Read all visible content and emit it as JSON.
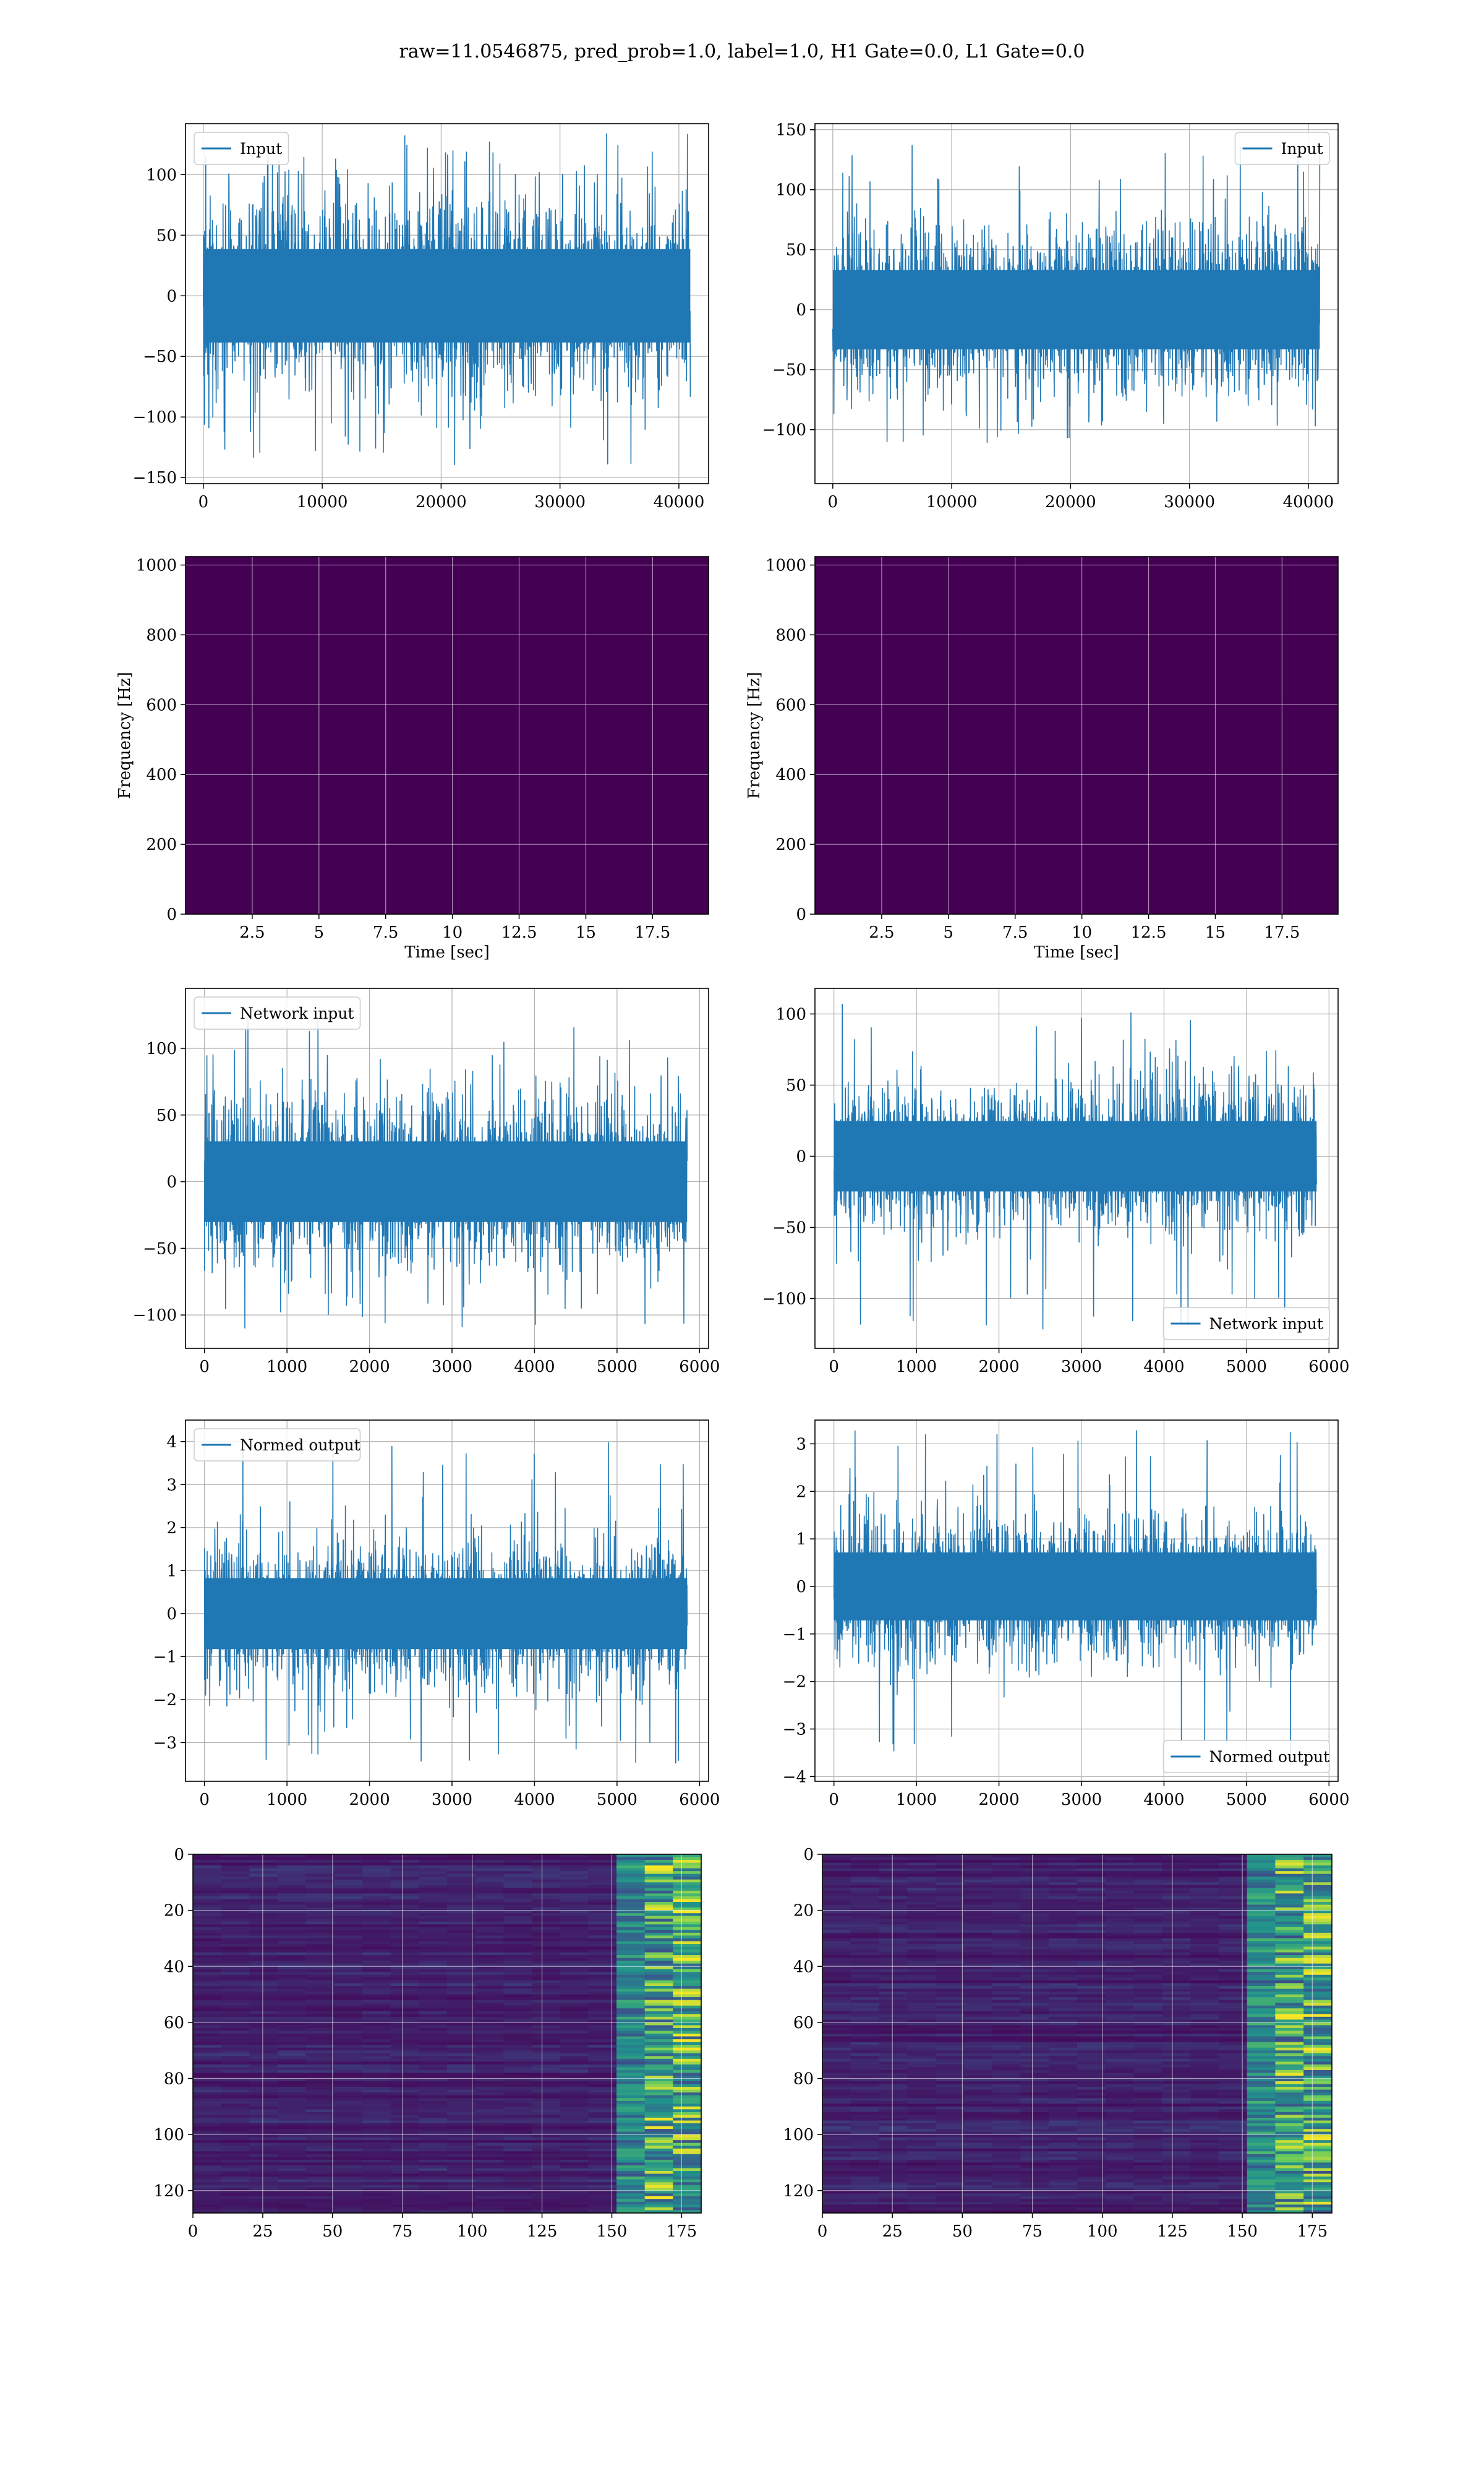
{
  "figure": {
    "title": "raw=11.0546875, pred_prob=1.0, label=1.0, H1 Gate=0.0, L1 Gate=0.0"
  },
  "colors": {
    "line": "#1f77b4",
    "grid": "#b0b0b0",
    "viridis_low": "#440154",
    "viridis_mid": "#21918c",
    "viridis_high": "#fde725"
  },
  "chart_data": [
    {
      "id": "r1-left",
      "type": "line",
      "grid": true,
      "series": [
        {
          "name": "Input",
          "x_range": [
            0,
            40960
          ],
          "amplitude_min": -140,
          "amplitude_max": 135,
          "typical_band": [
            -70,
            70
          ]
        }
      ],
      "xlim": [
        -1500,
        42500
      ],
      "ylim": [
        -155,
        142
      ],
      "xticks": [
        0,
        10000,
        20000,
        30000,
        40000
      ],
      "yticks": [
        100,
        50,
        0,
        -50,
        -100,
        -150
      ],
      "legend": "top-left",
      "xlabel": "",
      "ylabel": ""
    },
    {
      "id": "r1-right",
      "type": "line",
      "grid": true,
      "series": [
        {
          "name": "Input",
          "x_range": [
            0,
            40960
          ],
          "amplitude_min": -130,
          "amplitude_max": 142,
          "typical_band": [
            -60,
            60
          ]
        }
      ],
      "xlim": [
        -1500,
        42500
      ],
      "ylim": [
        -145,
        155
      ],
      "xticks": [
        0,
        10000,
        20000,
        30000,
        40000
      ],
      "yticks": [
        150,
        100,
        50,
        0,
        -50,
        -100
      ],
      "legend": "top-right",
      "xlabel": "",
      "ylabel": ""
    },
    {
      "id": "r2-left",
      "type": "heatmap",
      "grid": true,
      "x_range": [
        0,
        19.6
      ],
      "y_range": [
        0,
        1024
      ],
      "xlim": [
        0,
        19.6
      ],
      "ylim": [
        0,
        1024
      ],
      "xticks": [
        2.5,
        5.0,
        7.5,
        10.0,
        12.5,
        15.0,
        17.5
      ],
      "yticks": [
        0,
        200,
        400,
        600,
        800,
        1000
      ],
      "xlabel": "Time [sec]",
      "ylabel": "Frequency [Hz]",
      "colormap": "viridis"
    },
    {
      "id": "r2-right",
      "type": "heatmap",
      "grid": true,
      "x_range": [
        0,
        19.6
      ],
      "y_range": [
        0,
        1024
      ],
      "xlim": [
        0,
        19.6
      ],
      "ylim": [
        0,
        1024
      ],
      "xticks": [
        2.5,
        5.0,
        7.5,
        10.0,
        12.5,
        15.0,
        17.5
      ],
      "yticks": [
        0,
        200,
        400,
        600,
        800,
        1000
      ],
      "xlabel": "Time [sec]",
      "ylabel": "Frequency [Hz]",
      "colormap": "viridis"
    },
    {
      "id": "r3-left",
      "type": "line",
      "grid": true,
      "series": [
        {
          "name": "Network input",
          "x_range": [
            0,
            5850
          ],
          "amplitude_min": -112,
          "amplitude_max": 122,
          "typical_band": [
            -55,
            55
          ]
        }
      ],
      "xlim": [
        -230,
        6110
      ],
      "ylim": [
        -125,
        145
      ],
      "xticks": [
        0,
        1000,
        2000,
        3000,
        4000,
        5000,
        6000
      ],
      "yticks": [
        100,
        50,
        0,
        -50,
        -100
      ],
      "legend": "top-left",
      "xlabel": "",
      "ylabel": ""
    },
    {
      "id": "r3-right",
      "type": "line",
      "grid": true,
      "series": [
        {
          "name": "Network input",
          "x_range": [
            0,
            5850
          ],
          "amplitude_min": -122,
          "amplitude_max": 108,
          "typical_band": [
            -45,
            45
          ]
        }
      ],
      "xlim": [
        -230,
        6110
      ],
      "ylim": [
        -135,
        118
      ],
      "xticks": [
        0,
        1000,
        2000,
        3000,
        4000,
        5000,
        6000
      ],
      "yticks": [
        100,
        50,
        0,
        -50,
        -100
      ],
      "legend": "bottom-right",
      "xlabel": "",
      "ylabel": ""
    },
    {
      "id": "r4-left",
      "type": "line",
      "grid": true,
      "series": [
        {
          "name": "Normed output",
          "x_range": [
            0,
            5850
          ],
          "amplitude_min": -3.5,
          "amplitude_max": 4.1,
          "typical_band": [
            -1.5,
            1.5
          ]
        }
      ],
      "xlim": [
        -230,
        6110
      ],
      "ylim": [
        -3.9,
        4.5
      ],
      "xticks": [
        0,
        1000,
        2000,
        3000,
        4000,
        5000,
        6000
      ],
      "yticks": [
        4,
        3,
        2,
        1,
        0,
        -1,
        -2,
        -3
      ],
      "legend": "top-left",
      "xlabel": "",
      "ylabel": ""
    },
    {
      "id": "r4-right",
      "type": "line",
      "grid": true,
      "series": [
        {
          "name": "Normed output",
          "x_range": [
            0,
            5850
          ],
          "amplitude_min": -3.8,
          "amplitude_max": 3.3,
          "typical_band": [
            -1.3,
            1.3
          ]
        }
      ],
      "xlim": [
        -230,
        6110
      ],
      "ylim": [
        -4.1,
        3.5
      ],
      "xticks": [
        0,
        1000,
        2000,
        3000,
        4000,
        5000,
        6000
      ],
      "yticks": [
        3,
        2,
        1,
        0,
        -1,
        -2,
        -3,
        -4
      ],
      "legend": "bottom-right",
      "xlabel": "",
      "ylabel": ""
    },
    {
      "id": "r5-left",
      "type": "heatmap",
      "grid": true,
      "x_range": [
        0,
        182
      ],
      "y_range": [
        0,
        128
      ],
      "xlim": [
        0,
        182
      ],
      "ylim": [
        128,
        0
      ],
      "xticks": [
        0,
        25,
        50,
        75,
        100,
        125,
        150,
        175
      ],
      "yticks": [
        0,
        20,
        40,
        60,
        80,
        100,
        120
      ],
      "xlabel": "",
      "ylabel": "",
      "colormap": "viridis"
    },
    {
      "id": "r5-right",
      "type": "heatmap",
      "grid": true,
      "x_range": [
        0,
        182
      ],
      "y_range": [
        0,
        128
      ],
      "xlim": [
        0,
        182
      ],
      "ylim": [
        128,
        0
      ],
      "xticks": [
        0,
        25,
        50,
        75,
        100,
        125,
        150,
        175
      ],
      "yticks": [
        0,
        20,
        40,
        60,
        80,
        100,
        120
      ],
      "xlabel": "",
      "ylabel": "",
      "colormap": "viridis"
    }
  ]
}
